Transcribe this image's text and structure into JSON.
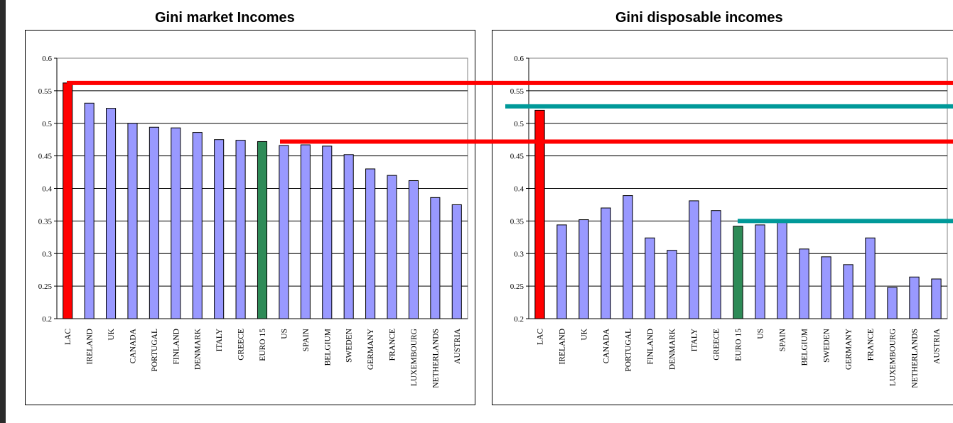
{
  "chart_data": [
    {
      "type": "bar",
      "title": "Gini market Incomes",
      "categories": [
        "LAC",
        "IRELAND",
        "UK",
        "CANADA",
        "PORTUGAL",
        "FINLAND",
        "DENMARK",
        "ITALY",
        "GREECE",
        "EURO 15",
        "US",
        "SPAIN",
        "BELGIUM",
        "SWEDEN",
        "GERMANY",
        "FRANCE",
        "LUXEMBOURG",
        "NETHERLANDS",
        "AUSTRIA"
      ],
      "values": [
        0.562,
        0.531,
        0.523,
        0.5,
        0.494,
        0.493,
        0.486,
        0.475,
        0.474,
        0.472,
        0.466,
        0.467,
        0.465,
        0.452,
        0.43,
        0.42,
        0.412,
        0.386,
        0.375
      ],
      "highlight_colors": {
        "LAC": "#ff0000",
        "EURO 15": "#2e8b57"
      },
      "bar_color": "#9999ff",
      "ylim": [
        0.2,
        0.6
      ],
      "yticks": [
        "0.2",
        "0.25",
        "0.3",
        "0.35",
        "0.4",
        "0.45",
        "0.5",
        "0.55",
        "0.6"
      ],
      "grid": true,
      "reference_lines": [
        {
          "y": 0.562,
          "color": "#ff0000"
        },
        {
          "y": 0.472,
          "color": "#ff0000"
        }
      ]
    },
    {
      "type": "bar",
      "title": "Gini disposable incomes",
      "categories": [
        "LAC",
        "IRELAND",
        "UK",
        "CANADA",
        "PORTUGAL",
        "FINLAND",
        "DENMARK",
        "ITALY",
        "GREECE",
        "EURO 15",
        "US",
        "SPAIN",
        "BELGIUM",
        "SWEDEN",
        "GERMANY",
        "FRANCE",
        "LUXEMBOURG",
        "NETHERLANDS",
        "AUSTRIA"
      ],
      "values": [
        0.52,
        0.344,
        0.352,
        0.37,
        0.389,
        0.324,
        0.305,
        0.381,
        0.366,
        0.342,
        0.344,
        0.35,
        0.307,
        0.295,
        0.283,
        0.324,
        0.248,
        0.264,
        0.261
      ],
      "highlight_colors": {
        "LAC": "#ff0000",
        "EURO 15": "#2e8b57"
      },
      "bar_color": "#9999ff",
      "ylim": [
        0.2,
        0.6
      ],
      "yticks": [
        "0.2",
        "0.25",
        "0.3",
        "0.35",
        "0.4",
        "0.45",
        "0.5",
        "0.55",
        "0.6"
      ],
      "grid": true,
      "reference_lines": [
        {
          "y": 0.526,
          "color": "#009999"
        },
        {
          "y": 0.35,
          "color": "#009999"
        }
      ]
    }
  ],
  "overlay_lines": [
    {
      "y_on_chart": 0,
      "y": 0.562,
      "color": "#ff0000"
    },
    {
      "y_on_chart": 0,
      "y": 0.472,
      "color": "#ff0000"
    },
    {
      "y_on_chart": 1,
      "y": 0.526,
      "color": "#009999"
    },
    {
      "y_on_chart": 1,
      "y": 0.35,
      "color": "#009999"
    }
  ]
}
